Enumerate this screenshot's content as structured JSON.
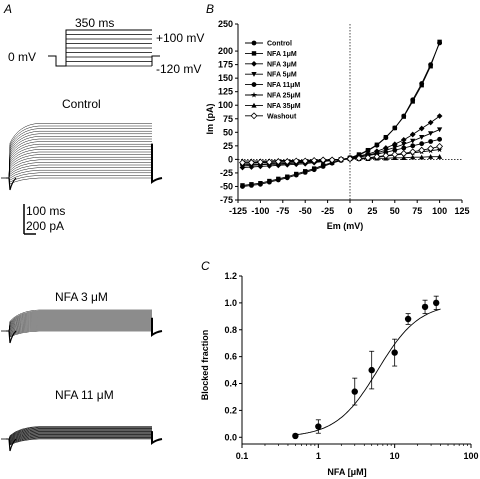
{
  "panels": {
    "a": "A",
    "b": "B",
    "c": "C"
  },
  "protocol": {
    "duration": "350 ms",
    "hold": "0 mV",
    "top": "+100 mV",
    "bottom": "-120 mV"
  },
  "traces": [
    {
      "label": "Control",
      "levels": 22,
      "amp": 2.6
    },
    {
      "label": "NFA 3 μM",
      "levels": 22,
      "amp": 1.0
    },
    {
      "label": "NFA 11 μM",
      "levels": 22,
      "amp": 0.6
    }
  ],
  "scalebar": {
    "time": "100 ms",
    "current": "200 pA"
  },
  "chart_data": [
    {
      "type": "line",
      "xlabel": "Em (mV)",
      "ylabel": "Im (pA)",
      "xlim": [
        -125,
        125
      ],
      "ylim": [
        -75,
        250
      ],
      "xticks": [
        -125,
        -100,
        -75,
        -50,
        -25,
        0,
        25,
        50,
        75,
        100,
        125
      ],
      "yticks": [
        -75,
        -50,
        -25,
        0,
        25,
        50,
        75,
        100,
        125,
        150,
        175,
        200,
        250
      ],
      "x": [
        -120,
        -110,
        -100,
        -90,
        -80,
        -70,
        -60,
        -50,
        -40,
        -30,
        -20,
        -10,
        0,
        10,
        20,
        30,
        40,
        50,
        60,
        70,
        80,
        90,
        100
      ],
      "series": [
        {
          "name": "Control",
          "marker": "circle",
          "values": [
            -50,
            -48,
            -46,
            -42,
            -38,
            -34,
            -29,
            -24,
            -19,
            -13,
            -7,
            -2,
            2,
            8,
            16,
            26,
            40,
            58,
            80,
            110,
            140,
            175,
            215
          ]
        },
        {
          "name": "NFA 1μM",
          "marker": "square",
          "values": [
            -48,
            -46,
            -44,
            -40,
            -36,
            -32,
            -27,
            -22,
            -17,
            -11,
            -6,
            -1,
            3,
            9,
            17,
            27,
            41,
            58,
            79,
            107,
            137,
            172,
            217
          ]
        },
        {
          "name": "NFA 3μM",
          "marker": "diamond",
          "values": [
            -15,
            -14,
            -13,
            -12,
            -11,
            -10,
            -9,
            -8,
            -6,
            -4,
            -2,
            0,
            3,
            6,
            10,
            15,
            21,
            28,
            36,
            46,
            57,
            68,
            80
          ]
        },
        {
          "name": "NFA 5μM",
          "marker": "triangle-down",
          "values": [
            -12,
            -11,
            -10,
            -9,
            -9,
            -8,
            -7,
            -6,
            -5,
            -3,
            -2,
            0,
            2,
            5,
            8,
            12,
            17,
            22,
            28,
            34,
            41,
            48,
            55
          ]
        },
        {
          "name": "NFA 11μM",
          "marker": "circle",
          "values": [
            -10,
            -9,
            -9,
            -8,
            -7,
            -7,
            -6,
            -5,
            -4,
            -3,
            -1,
            0,
            2,
            4,
            7,
            10,
            13,
            17,
            21,
            25,
            29,
            33,
            37
          ]
        },
        {
          "name": "NFA 25μM",
          "marker": "star",
          "values": [
            -7,
            -7,
            -6,
            -6,
            -5,
            -5,
            -4,
            -4,
            -3,
            -2,
            -1,
            0,
            1,
            2,
            3,
            4,
            6,
            8,
            10,
            12,
            14,
            16,
            18
          ]
        },
        {
          "name": "NFA 35μM",
          "marker": "triangle-up",
          "values": [
            -3,
            -3,
            -3,
            -3,
            -2,
            -2,
            -2,
            -2,
            -1,
            -1,
            0,
            0,
            1,
            1,
            1,
            2,
            2,
            3,
            3,
            4,
            4,
            5,
            5
          ]
        },
        {
          "name": "Washout",
          "marker": "diamond-open",
          "values": [
            -6,
            -6,
            -5,
            -5,
            -4,
            -4,
            -3,
            -3,
            -2,
            -1,
            -1,
            0,
            1,
            2,
            3,
            5,
            7,
            9,
            11,
            14,
            17,
            20,
            24
          ]
        }
      ]
    },
    {
      "type": "scatter",
      "xlabel": "NFA [μM]",
      "ylabel": "Blocked fraction",
      "xscale": "log",
      "xlim": [
        0.1,
        100
      ],
      "ylim": [
        -0.05,
        1.2
      ],
      "xticks": [
        0.1,
        1,
        10,
        100
      ],
      "yticks": [
        0.0,
        0.2,
        0.4,
        0.6,
        0.8,
        1.0,
        1.2
      ],
      "x": [
        0.5,
        1,
        3,
        5,
        10,
        15,
        25,
        35
      ],
      "values": [
        0.01,
        0.08,
        0.34,
        0.5,
        0.63,
        0.88,
        0.97,
        1.0
      ],
      "error": [
        0.01,
        0.05,
        0.1,
        0.14,
        0.1,
        0.04,
        0.05,
        0.05
      ],
      "fit": {
        "ic50": 6.0,
        "hill": 1.6
      }
    }
  ]
}
